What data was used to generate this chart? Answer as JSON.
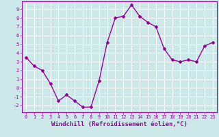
{
  "x": [
    0,
    1,
    2,
    3,
    4,
    5,
    6,
    7,
    8,
    9,
    10,
    11,
    12,
    13,
    14,
    15,
    16,
    17,
    18,
    19,
    20,
    21,
    22,
    23
  ],
  "y": [
    3.5,
    2.5,
    2.0,
    0.5,
    -1.5,
    -0.8,
    -1.5,
    -2.2,
    -2.2,
    0.8,
    5.2,
    8.0,
    8.2,
    9.5,
    8.2,
    7.5,
    7.0,
    4.5,
    3.2,
    3.0,
    3.2,
    3.0,
    4.8,
    5.2
  ],
  "xlim": [
    -0.5,
    23.5
  ],
  "ylim": [
    -2.8,
    9.9
  ],
  "yticks": [
    -2,
    -1,
    0,
    1,
    2,
    3,
    4,
    5,
    6,
    7,
    8,
    9
  ],
  "xticks": [
    0,
    1,
    2,
    3,
    4,
    5,
    6,
    7,
    8,
    9,
    10,
    11,
    12,
    13,
    14,
    15,
    16,
    17,
    18,
    19,
    20,
    21,
    22,
    23
  ],
  "xlabel": "Windchill (Refroidissement éolien,°C)",
  "line_color": "#990099",
  "marker": "D",
  "marker_size": 2.0,
  "line_width": 1.0,
  "bg_color": "#cce8e8",
  "grid_color": "#ffffff",
  "tick_color": "#990099",
  "label_color": "#990099",
  "tick_fontsize": 5.0,
  "xlabel_fontsize": 6.5
}
